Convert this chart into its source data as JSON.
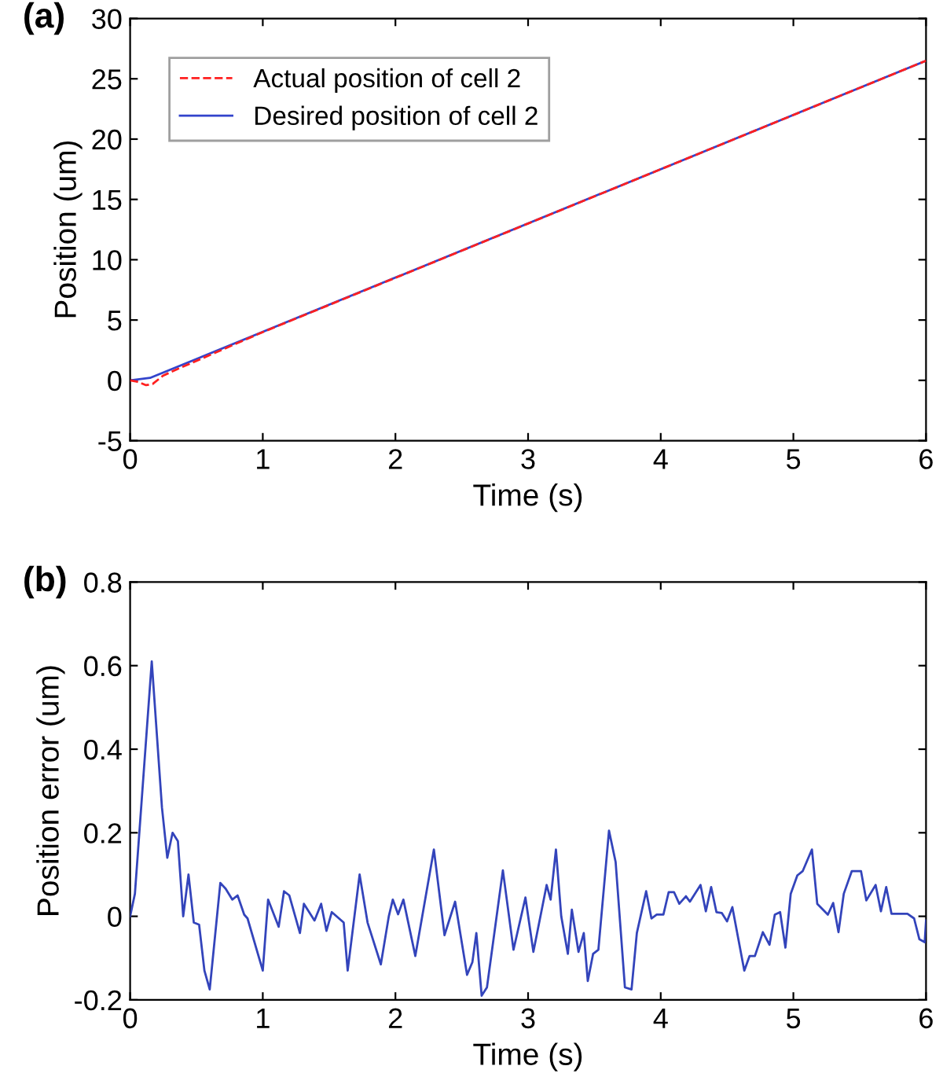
{
  "chart_data": [
    {
      "type": "line",
      "annotations": [
        "(a)"
      ],
      "xlabel": "Time (s)",
      "ylabel": "Position (um)",
      "xlim": [
        0,
        6
      ],
      "ylim": [
        -5,
        30
      ],
      "xticks": [
        0,
        1,
        2,
        3,
        4,
        5,
        6
      ],
      "yticks": [
        -5,
        0,
        5,
        10,
        15,
        20,
        25,
        30
      ],
      "legend": "top left",
      "grid": false,
      "series": [
        {
          "name": "Actual position of cell 2",
          "color": "#ff2020",
          "line_style": "dashed",
          "x": [
            0,
            0.05,
            0.12,
            0.17,
            0.25,
            0.35,
            1,
            2,
            3,
            4,
            5,
            6
          ],
          "values": [
            0,
            -0.1,
            -0.4,
            -0.3,
            0.4,
            0.9,
            4.0,
            8.5,
            13,
            17.5,
            22,
            26.5
          ]
        },
        {
          "name": "Desired position of cell 2",
          "color": "#3344cc",
          "line_style": "solid",
          "x": [
            0,
            0.15,
            6
          ],
          "values": [
            0,
            0.2,
            26.5
          ]
        }
      ]
    },
    {
      "type": "line",
      "annotations": [
        "(b)"
      ],
      "xlabel": "Time (s)",
      "ylabel": "Position error (um)",
      "xlim": [
        0,
        6
      ],
      "ylim": [
        -0.2,
        0.8
      ],
      "xticks": [
        0,
        1,
        2,
        3,
        4,
        5,
        6
      ],
      "yticks": [
        -0.2,
        0,
        0.2,
        0.4,
        0.6,
        0.8
      ],
      "legend": false,
      "grid": false,
      "series": [
        {
          "color": "#3344bb",
          "line_style": "solid",
          "x": [
            0,
            0.036,
            0.163,
            0.24,
            0.28,
            0.32,
            0.36,
            0.4,
            0.44,
            0.48,
            0.52,
            0.56,
            0.6,
            0.68,
            0.72,
            0.77,
            0.81,
            0.86,
            0.885,
            1.0,
            1.04,
            1.12,
            1.16,
            1.2,
            1.28,
            1.31,
            1.39,
            1.44,
            1.48,
            1.52,
            1.61,
            1.64,
            1.73,
            1.79,
            1.89,
            1.95,
            1.98,
            2.02,
            2.06,
            2.15,
            2.29,
            2.37,
            2.45,
            2.54,
            2.58,
            2.61,
            2.65,
            2.69,
            2.81,
            2.89,
            2.98,
            3.04,
            3.14,
            3.17,
            3.21,
            3.25,
            3.3,
            3.33,
            3.38,
            3.42,
            3.45,
            3.49,
            3.53,
            3.61,
            3.66,
            3.73,
            3.78,
            3.82,
            3.89,
            3.93,
            3.97,
            4.02,
            4.06,
            4.1,
            4.14,
            4.19,
            4.22,
            4.3,
            4.34,
            4.38,
            4.42,
            4.46,
            4.5,
            4.54,
            4.63,
            4.67,
            4.71,
            4.77,
            4.82,
            4.86,
            4.9,
            4.94,
            4.98,
            5.03,
            5.07,
            5.14,
            5.18,
            5.26,
            5.3,
            5.34,
            5.38,
            5.44,
            5.51,
            5.55,
            5.62,
            5.66,
            5.7,
            5.74,
            5.86,
            5.91,
            5.95,
            5.99,
            6.0
          ],
          "values": [
            0,
            0.054,
            0.61,
            0.26,
            0.14,
            0.2,
            0.18,
            0,
            0.1,
            -0.015,
            -0.02,
            -0.13,
            -0.175,
            0.08,
            0.066,
            0.04,
            0.05,
            0.004,
            -0.005,
            -0.13,
            0.04,
            -0.025,
            0.06,
            0.05,
            -0.04,
            0.03,
            -0.01,
            0.03,
            -0.035,
            0.01,
            -0.015,
            -0.13,
            0.1,
            -0.015,
            -0.115,
            0,
            0.04,
            0.005,
            0.04,
            -0.095,
            0.16,
            -0.045,
            0.035,
            -0.14,
            -0.11,
            -0.04,
            -0.19,
            -0.17,
            0.11,
            -0.08,
            0.045,
            -0.085,
            0.075,
            0.04,
            0.16,
            0,
            -0.09,
            0.016,
            -0.085,
            -0.04,
            -0.155,
            -0.09,
            -0.08,
            0.205,
            0.13,
            -0.17,
            -0.175,
            -0.04,
            0.06,
            -0.005,
            0.004,
            0.004,
            0.058,
            0.058,
            0.03,
            0.048,
            0.035,
            0.075,
            0.012,
            0.07,
            0.01,
            0.008,
            -0.012,
            0.022,
            -0.13,
            -0.095,
            -0.095,
            -0.038,
            -0.068,
            0.004,
            0.01,
            -0.075,
            0.054,
            0.098,
            0.108,
            0.16,
            0.03,
            0.004,
            0.032,
            -0.038,
            0.054,
            0.108,
            0.108,
            0.038,
            0.075,
            0.012,
            0.07,
            0.006,
            0.006,
            -0.005,
            -0.055,
            -0.062,
            -0.01
          ]
        }
      ]
    }
  ]
}
